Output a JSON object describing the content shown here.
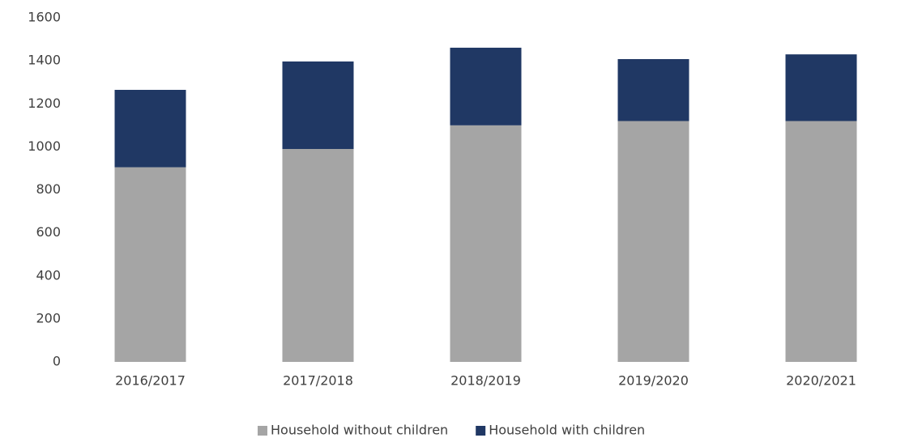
{
  "chart_data": {
    "type": "stacked_bar",
    "categories": [
      "2016/2017",
      "2017/2018",
      "2018/2019",
      "2019/2020",
      "2020/2021"
    ],
    "series": [
      {
        "name": "Household without children",
        "color": "#a5a5a5",
        "values": [
          905,
          990,
          1100,
          1120,
          1120
        ]
      },
      {
        "name": "Household with children",
        "color": "#203864",
        "values": [
          360,
          407,
          361,
          288,
          310
        ]
      }
    ],
    "ylim": [
      0,
      1600
    ],
    "yticks": [
      0,
      200,
      400,
      600,
      800,
      1000,
      1200,
      1400,
      1600
    ],
    "grid": false
  }
}
